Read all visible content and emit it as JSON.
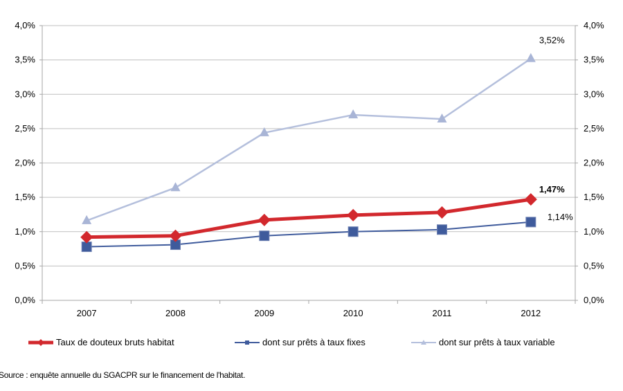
{
  "chart_data": {
    "type": "line",
    "title": "",
    "xlabel": "",
    "ylabel": "",
    "categories": [
      "2007",
      "2008",
      "2009",
      "2010",
      "2011",
      "2012"
    ],
    "ylim": [
      0,
      4.0
    ],
    "y_ticks": [
      "0,0%",
      "0,5%",
      "1,0%",
      "1,5%",
      "2,0%",
      "2,5%",
      "3,0%",
      "3,5%",
      "4,0%"
    ],
    "y_ticks_right": [
      "0,0%",
      "0,5%",
      "1,0%",
      "1,5%",
      "2,0%",
      "2,5%",
      "3,0%",
      "3,5%",
      "4,0%"
    ],
    "grid": true,
    "legend_position": "bottom",
    "series": [
      {
        "name": "Taux de douteux bruts habitat",
        "values": [
          0.92,
          0.94,
          1.17,
          1.24,
          1.28,
          1.47
        ],
        "color": "#d2282d",
        "marker": "diamond",
        "end_label": "1,47%",
        "end_label_bold": true
      },
      {
        "name": "dont sur prêts à taux fixes",
        "values": [
          0.78,
          0.81,
          0.94,
          1.0,
          1.03,
          1.14
        ],
        "color": "#3f5b9c",
        "marker": "square",
        "end_label": "1,14%",
        "end_label_bold": false
      },
      {
        "name": "dont sur prêts à taux variable",
        "values": [
          1.16,
          1.64,
          2.44,
          2.7,
          2.64,
          3.52
        ],
        "color": "#b4bfdc",
        "marker": "triangle",
        "end_label": "3,52%",
        "end_label_bold": false
      }
    ]
  },
  "source": "Source : enquête annuelle du SGACPR sur le financement de l'habitat."
}
